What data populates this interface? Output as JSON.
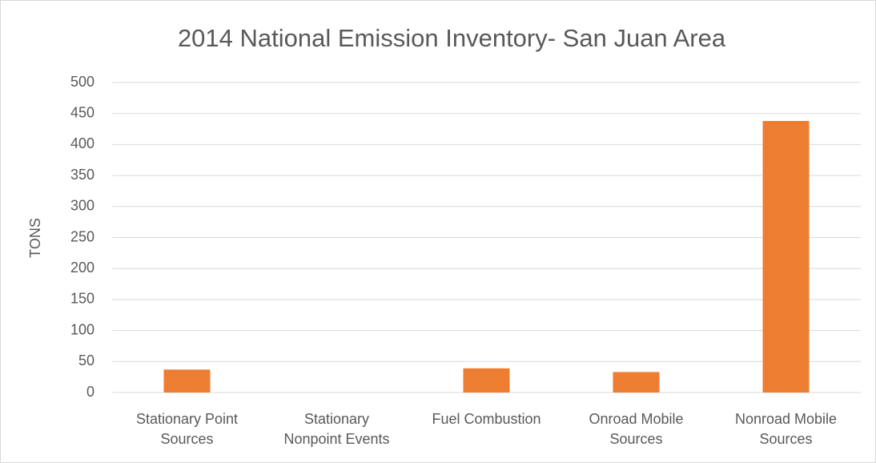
{
  "chart_data": {
    "type": "bar",
    "title": "2014 National Emission Inventory- San Juan Area",
    "y_label": "TONS",
    "categories": [
      "Stationary Point\nSources",
      "Stationary\nNonpoint Events",
      "Fuel Combustion",
      "Onroad Mobile\nSources",
      "Nonroad Mobile\nSources"
    ],
    "values": [
      37,
      0,
      39,
      33,
      438
    ],
    "color": "#ed7d31",
    "ylim": [
      0,
      500
    ],
    "yticks": [
      0,
      50,
      100,
      150,
      200,
      250,
      300,
      350,
      400,
      450,
      500
    ],
    "grid": true
  }
}
